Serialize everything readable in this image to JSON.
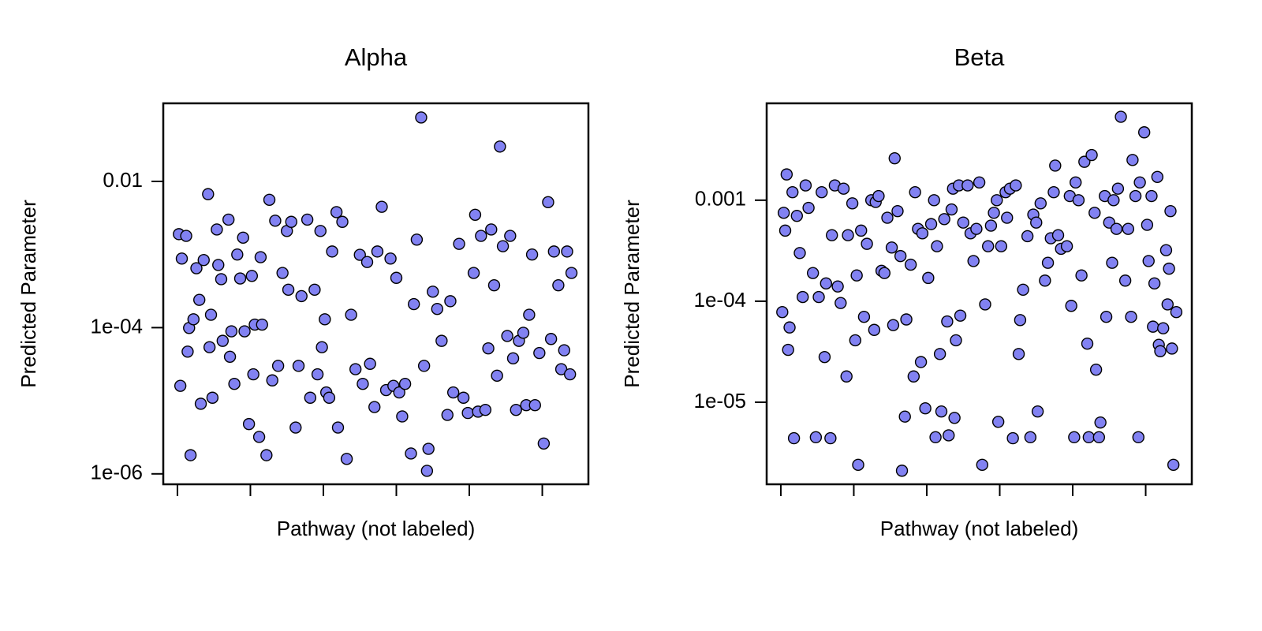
{
  "chart_data": [
    {
      "type": "scatter",
      "title": "Alpha",
      "xlabel": "Pathway (not labeled)",
      "ylabel": "Predicted Parameter",
      "log_y": true,
      "color": "#8282f2",
      "xlim": [
        -9.7,
        281.6
      ],
      "xticks": [
        0,
        50,
        100,
        150,
        200,
        250
      ],
      "ylim": [
        7.2e-07,
        0.117
      ],
      "yticks": [
        {
          "value": 1e-06,
          "label": "1e-06"
        },
        {
          "value": 0.0001,
          "label": "1e-04"
        },
        0.01
      ],
      "x": [
        1,
        2,
        3,
        6,
        7,
        8,
        9,
        11,
        13,
        15,
        16,
        18,
        21,
        22,
        23,
        24,
        27,
        28,
        30,
        31,
        35,
        36,
        37,
        39,
        41,
        43,
        45,
        46,
        49,
        51,
        52,
        53,
        56,
        57,
        58,
        61,
        63,
        65,
        67,
        69,
        72,
        75,
        76,
        78,
        81,
        83,
        85,
        89,
        91,
        94,
        96,
        98,
        99,
        101,
        102,
        104,
        106,
        109,
        110,
        113,
        116,
        119,
        122,
        125,
        127,
        130,
        132,
        135,
        137,
        140,
        143,
        146,
        148,
        150,
        152,
        154,
        156,
        160,
        162,
        164,
        167,
        169,
        171,
        172,
        175,
        178,
        181,
        185,
        187,
        189,
        193,
        196,
        199,
        203,
        204,
        206,
        208,
        211,
        213,
        215,
        217,
        219,
        221,
        223,
        226,
        228,
        230,
        232,
        234,
        237,
        239,
        241,
        243,
        245,
        248,
        251,
        254,
        256,
        258,
        261,
        263,
        265,
        267,
        269,
        270
      ],
      "values": [
        0.0019,
        1.6e-05,
        0.00088,
        0.0018,
        4.7e-05,
        9.9e-05,
        1.8e-06,
        0.00013,
        0.00065,
        0.00024,
        9.1e-06,
        0.00084,
        0.0067,
        5.4e-05,
        0.00015,
        1.1e-05,
        0.0022,
        0.00072,
        0.00046,
        6.6e-05,
        0.003,
        4e-05,
        8.9e-05,
        1.7e-05,
        0.001,
        0.00047,
        0.0017,
        8.9e-05,
        4.8e-06,
        0.00051,
        2.3e-05,
        0.00011,
        3.2e-06,
        0.00092,
        0.00011,
        1.8e-06,
        0.0056,
        1.9e-05,
        0.0029,
        3e-05,
        0.00056,
        0.0021,
        0.00033,
        0.0028,
        4.3e-06,
        3e-05,
        0.00027,
        0.003,
        1.1e-05,
        0.00033,
        2.3e-05,
        0.0021,
        5.4e-05,
        0.00013,
        1.3e-05,
        1.1e-05,
        0.0011,
        0.0038,
        4.3e-06,
        0.0028,
        1.6e-06,
        0.00015,
        2.7e-05,
        0.00099,
        1.7e-05,
        0.00079,
        3.2e-05,
        8.2e-06,
        0.0011,
        0.0045,
        1.4e-05,
        0.00088,
        1.6e-05,
        0.00048,
        1.3e-05,
        6.1e-06,
        1.7e-05,
        1.9e-06,
        0.00021,
        0.0016,
        0.075,
        3e-05,
        1.1e-06,
        2.2e-06,
        0.00031,
        0.00018,
        6.6e-05,
        6.4e-06,
        0.00023,
        1.3e-05,
        0.0014,
        1.1e-05,
        6.8e-06,
        0.00056,
        0.0035,
        7.1e-06,
        0.0018,
        7.5e-06,
        5.2e-05,
        0.0022,
        0.00038,
        2.2e-05,
        0.03,
        0.0013,
        7.7e-05,
        0.0018,
        3.8e-05,
        7.5e-06,
        6.6e-05,
        8.5e-05,
        8.7e-06,
        0.00015,
        0.001,
        8.7e-06,
        4.5e-05,
        2.6e-06,
        0.0052,
        7e-05,
        0.0011,
        0.00038,
        2.7e-05,
        4.9e-05,
        0.0011,
        2.3e-05,
        0.00056
      ]
    },
    {
      "type": "scatter",
      "title": "Beta",
      "xlabel": "Pathway (not labeled)",
      "ylabel": "Predicted Parameter",
      "log_y": true,
      "color": "#8282f2",
      "xlim": [
        -9.7,
        281.6
      ],
      "xticks": [
        0,
        50,
        100,
        150,
        200,
        250
      ],
      "ylim": [
        1.54e-06,
        0.0091
      ],
      "yticks": [
        {
          "value": 1e-05,
          "label": "1e-05"
        },
        {
          "value": 0.0001,
          "label": "1e-04"
        },
        0.001
      ],
      "x": [
        1,
        2,
        3,
        4,
        5,
        6,
        8,
        9,
        11,
        13,
        15,
        17,
        19,
        22,
        24,
        26,
        28,
        30,
        31,
        34,
        35,
        37,
        39,
        41,
        43,
        45,
        46,
        49,
        51,
        52,
        53,
        55,
        57,
        59,
        62,
        64,
        65,
        67,
        69,
        71,
        73,
        76,
        77,
        78,
        80,
        82,
        83,
        85,
        86,
        89,
        91,
        92,
        94,
        96,
        97,
        99,
        101,
        103,
        105,
        106,
        107,
        109,
        110,
        112,
        114,
        115,
        117,
        118,
        119,
        120,
        122,
        123,
        125,
        128,
        130,
        132,
        134,
        136,
        138,
        140,
        142,
        144,
        146,
        148,
        149,
        151,
        154,
        155,
        157,
        159,
        161,
        163,
        164,
        166,
        169,
        171,
        173,
        175,
        176,
        178,
        181,
        183,
        185,
        187,
        188,
        190,
        192,
        196,
        198,
        199,
        201,
        202,
        204,
        206,
        208,
        210,
        211,
        213,
        215,
        216,
        218,
        219,
        222,
        223,
        225,
        227,
        228,
        230,
        231,
        233,
        236,
        238,
        240,
        241,
        243,
        245,
        246,
        249,
        251,
        252,
        254,
        255,
        256,
        258,
        259,
        260,
        262,
        264,
        265,
        266,
        267,
        268,
        269,
        271
      ],
      "values": [
        7.8e-05,
        0.00075,
        0.0005,
        0.0018,
        3.3e-05,
        5.5e-05,
        0.0012,
        4.4e-06,
        0.0007,
        0.0003,
        0.00011,
        0.0014,
        0.00084,
        0.00019,
        4.5e-06,
        0.00011,
        0.0012,
        2.8e-05,
        0.00015,
        4.4e-06,
        0.00045,
        0.0014,
        0.00014,
        9.6e-05,
        0.0013,
        1.8e-05,
        0.00045,
        0.00093,
        4.1e-05,
        0.00018,
        2.4e-06,
        0.0005,
        7e-05,
        0.00037,
        0.001,
        5.2e-05,
        0.00096,
        0.0011,
        0.0002,
        0.00019,
        0.00067,
        0.00034,
        5.8e-05,
        0.0026,
        0.00078,
        0.00028,
        2.1e-06,
        7.2e-06,
        6.6e-05,
        0.00023,
        1.8e-05,
        0.0012,
        0.00052,
        2.5e-05,
        0.00047,
        8.7e-06,
        0.00017,
        0.00058,
        0.001,
        4.5e-06,
        0.00035,
        3e-05,
        8.1e-06,
        0.00065,
        6.3e-05,
        4.7e-06,
        0.00081,
        0.0013,
        7e-06,
        4.1e-05,
        0.0014,
        7.2e-05,
        0.0006,
        0.0014,
        0.00047,
        0.00025,
        0.00052,
        0.0015,
        2.4e-06,
        9.3e-05,
        0.00035,
        0.00056,
        0.00075,
        0.001,
        6.4e-06,
        0.00035,
        0.0012,
        0.00067,
        0.0013,
        4.4e-06,
        0.0014,
        3e-05,
        6.5e-05,
        0.00013,
        0.00044,
        4.5e-06,
        0.00072,
        0.0006,
        8.1e-06,
        0.00093,
        0.00016,
        0.00024,
        0.00042,
        0.0012,
        0.0022,
        0.00045,
        0.00033,
        0.00035,
        0.0011,
        9e-05,
        4.5e-06,
        0.0015,
        0.001,
        0.00018,
        0.0024,
        3.8e-05,
        4.5e-06,
        0.0028,
        0.00075,
        2.1e-05,
        4.5e-06,
        6.3e-06,
        0.0011,
        7e-05,
        0.0006,
        0.00024,
        0.001,
        0.00052,
        0.0013,
        0.0067,
        0.00016,
        0.00052,
        7e-05,
        0.0025,
        0.0011,
        4.5e-06,
        0.0015,
        0.0047,
        0.00057,
        0.00025,
        0.0011,
        5.6e-05,
        0.00015,
        0.0017,
        3.7e-05,
        3.2e-05,
        5.4e-05,
        0.00032,
        9.3e-05,
        0.00021,
        0.00078,
        3.4e-05,
        2.4e-06,
        7.8e-05
      ]
    }
  ]
}
